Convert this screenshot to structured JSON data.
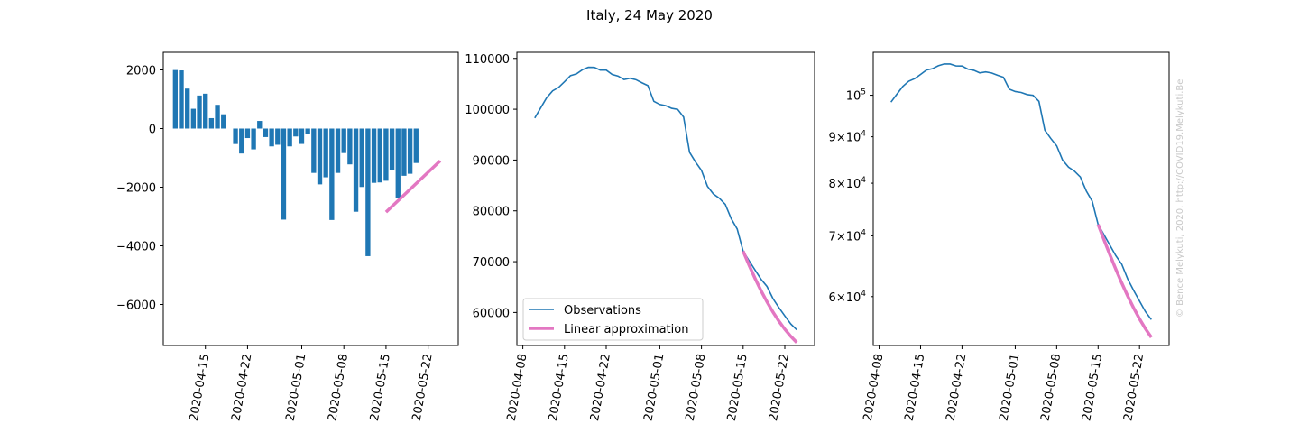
{
  "title": "Italy, 24 May 2020",
  "credit": "© Bence Melykuti, 2020. http://COVID19.Melykuti.Be",
  "colors": {
    "observations": "#1f77b4",
    "approximation": "#e377c2",
    "bars": "#1f77b4"
  },
  "chart_data": [
    {
      "type": "bar",
      "x_ticks": [
        "2020-04-15",
        "2020-04-22",
        "2020-05-01",
        "2020-05-08",
        "2020-05-15",
        "2020-05-22"
      ],
      "y_ticks": [
        "2000",
        "0",
        "−2000",
        "−4000",
        "−6000"
      ],
      "ylim": [
        -7400,
        2600
      ],
      "categories": [
        "2020-04-10",
        "2020-04-11",
        "2020-04-12",
        "2020-04-13",
        "2020-04-14",
        "2020-04-15",
        "2020-04-16",
        "2020-04-17",
        "2020-04-18",
        "2020-04-19",
        "2020-04-20",
        "2020-04-21",
        "2020-04-22",
        "2020-04-23",
        "2020-04-24",
        "2020-04-25",
        "2020-04-26",
        "2020-04-27",
        "2020-04-28",
        "2020-04-29",
        "2020-04-30",
        "2020-05-01",
        "2020-05-02",
        "2020-05-03",
        "2020-05-04",
        "2020-05-05",
        "2020-05-06",
        "2020-05-07",
        "2020-05-08",
        "2020-05-09",
        "2020-05-10",
        "2020-05-11",
        "2020-05-12",
        "2020-05-13",
        "2020-05-14",
        "2020-05-15",
        "2020-05-16",
        "2020-05-17",
        "2020-05-18",
        "2020-05-19",
        "2020-05-20",
        "2020-05-21",
        "2020-05-22",
        "2020-05-23",
        "2020-05-24"
      ],
      "values": [
        1996,
        1984,
        1363,
        675,
        1127,
        1189,
        355,
        809,
        486,
        0,
        -528,
        -851,
        -324,
        -710,
        260,
        -290,
        -608,
        -553,
        -3106,
        -608,
        -270,
        -525,
        -199,
        -1513,
        -1904,
        -1663,
        -3119,
        -1513,
        -836,
        -1222,
        -2837,
        -1993,
        -4352,
        -1852,
        -1838,
        -1781,
        -1424,
        -2377,
        -1611,
        -1542,
        -1175,
        0,
        0,
        0,
        0
      ],
      "approximation": {
        "x": [
          "2020-05-15",
          "2020-05-24"
        ],
        "y": [
          -2850,
          -1100
        ]
      }
    },
    {
      "type": "line",
      "x_ticks": [
        "2020-04-08",
        "2020-04-15",
        "2020-04-22",
        "2020-05-01",
        "2020-05-08",
        "2020-05-15",
        "2020-05-22"
      ],
      "y_ticks": [
        "110000",
        "100000",
        "90000",
        "80000",
        "70000",
        "60000"
      ],
      "ylim": [
        53500,
        111200
      ],
      "series": [
        {
          "name": "Observations",
          "x": [
            "2020-04-10",
            "2020-04-11",
            "2020-04-12",
            "2020-04-13",
            "2020-04-14",
            "2020-04-15",
            "2020-04-16",
            "2020-04-17",
            "2020-04-18",
            "2020-04-19",
            "2020-04-20",
            "2020-04-21",
            "2020-04-22",
            "2020-04-23",
            "2020-04-24",
            "2020-04-25",
            "2020-04-26",
            "2020-04-27",
            "2020-04-28",
            "2020-04-29",
            "2020-04-30",
            "2020-05-01",
            "2020-05-02",
            "2020-05-03",
            "2020-05-04",
            "2020-05-05",
            "2020-05-06",
            "2020-05-07",
            "2020-05-08",
            "2020-05-09",
            "2020-05-10",
            "2020-05-11",
            "2020-05-12",
            "2020-05-13",
            "2020-05-14",
            "2020-05-15",
            "2020-05-16",
            "2020-05-17",
            "2020-05-18",
            "2020-05-19",
            "2020-05-20",
            "2020-05-21",
            "2020-05-22",
            "2020-05-23",
            "2020-05-24"
          ],
          "y": [
            98273,
            100269,
            102253,
            103616,
            104291,
            105418,
            106607,
            106962,
            107771,
            108257,
            108237,
            107709,
            107699,
            106848,
            106527,
            105847,
            106103,
            105813,
            105205,
            104657,
            101551,
            100943,
            100704,
            100179,
            99980,
            98467,
            91528,
            89624,
            87961,
            84842,
            83324,
            82488,
            81266,
            78457,
            76440,
            72070,
            70187,
            68351,
            66553,
            65129,
            62752,
            60960,
            59322,
            57752,
            56594
          ]
        },
        {
          "name": "Linear approximation",
          "x": [
            "2020-05-15",
            "2020-05-16",
            "2020-05-17",
            "2020-05-18",
            "2020-05-19",
            "2020-05-20",
            "2020-05-21",
            "2020-05-22",
            "2020-05-23",
            "2020-05-24"
          ],
          "y": [
            72070,
            69300,
            66700,
            64300,
            62100,
            60100,
            58300,
            56700,
            55300,
            54100
          ]
        }
      ],
      "legend": {
        "position": "lower left"
      }
    },
    {
      "type": "line",
      "yscale": "log",
      "x_ticks": [
        "2020-04-08",
        "2020-04-15",
        "2020-04-22",
        "2020-05-01",
        "2020-05-08",
        "2020-05-15",
        "2020-05-22"
      ],
      "y_ticks": [
        "10^5",
        "9×10^4",
        "8×10^4",
        "7×10^4",
        "6×10^4"
      ],
      "ylim": [
        53000,
        111500
      ],
      "series_ref": "same values as the second panel"
    }
  ],
  "legend": {
    "observations": "Observations",
    "approximation": "Linear approximation"
  },
  "ticks": {
    "bar_x": [
      "2020-04-15",
      "2020-04-22",
      "2020-05-01",
      "2020-05-08",
      "2020-05-15",
      "2020-05-22"
    ],
    "bar_y": [
      "2000",
      "0",
      "−2000",
      "−4000",
      "−6000"
    ],
    "line_x": [
      "2020-04-08",
      "2020-04-15",
      "2020-04-22",
      "2020-05-01",
      "2020-05-08",
      "2020-05-15",
      "2020-05-22"
    ],
    "line_y": [
      "110000",
      "100000",
      "90000",
      "80000",
      "70000",
      "60000"
    ],
    "log_x": [
      "2020-04-08",
      "2020-04-15",
      "2020-04-22",
      "2020-05-01",
      "2020-05-08",
      "2020-05-15",
      "2020-05-22"
    ]
  }
}
